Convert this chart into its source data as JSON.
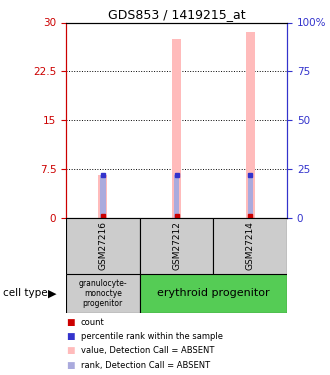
{
  "title": "GDS853 / 1419215_at",
  "samples": [
    "GSM27216",
    "GSM27212",
    "GSM27214"
  ],
  "bar_values": [
    6.5,
    27.5,
    28.5
  ],
  "rank_values_pct": [
    22.0,
    22.0,
    22.0
  ],
  "bar_color_absent": "#ffbbbb",
  "rank_color_absent": "#aaaadd",
  "red_dot_color": "#cc0000",
  "blue_dot_color": "#3333cc",
  "ylim_left": [
    0,
    30
  ],
  "ylim_right": [
    0,
    100
  ],
  "yticks_left": [
    0,
    7.5,
    15,
    22.5,
    30
  ],
  "ytick_labels_left": [
    "0",
    "7.5",
    "15",
    "22.5",
    "30"
  ],
  "yticks_right": [
    0,
    25,
    50,
    75,
    100
  ],
  "ytick_labels_right": [
    "0",
    "25",
    "50",
    "75",
    "100%"
  ],
  "left_axis_color": "#cc0000",
  "right_axis_color": "#3333cc",
  "bg_color": "#ffffff",
  "sample_box_color": "#cccccc",
  "granulocyte_color": "#cccccc",
  "erythroid_color": "#55cc55",
  "cell_groups": [
    {
      "xstart": 0,
      "xend": 1,
      "color": "#cccccc",
      "label": "granulocyte-\nmonoctye\nprogenitor",
      "fontsize": 5.5
    },
    {
      "xstart": 1,
      "xend": 3,
      "color": "#55cc55",
      "label": "erythroid progenitor",
      "fontsize": 8
    }
  ],
  "legend_items": [
    {
      "label": "count",
      "color": "#cc0000"
    },
    {
      "label": "percentile rank within the sample",
      "color": "#3333cc"
    },
    {
      "label": "value, Detection Call = ABSENT",
      "color": "#ffbbbb"
    },
    {
      "label": "rank, Detection Call = ABSENT",
      "color": "#aaaadd"
    }
  ]
}
